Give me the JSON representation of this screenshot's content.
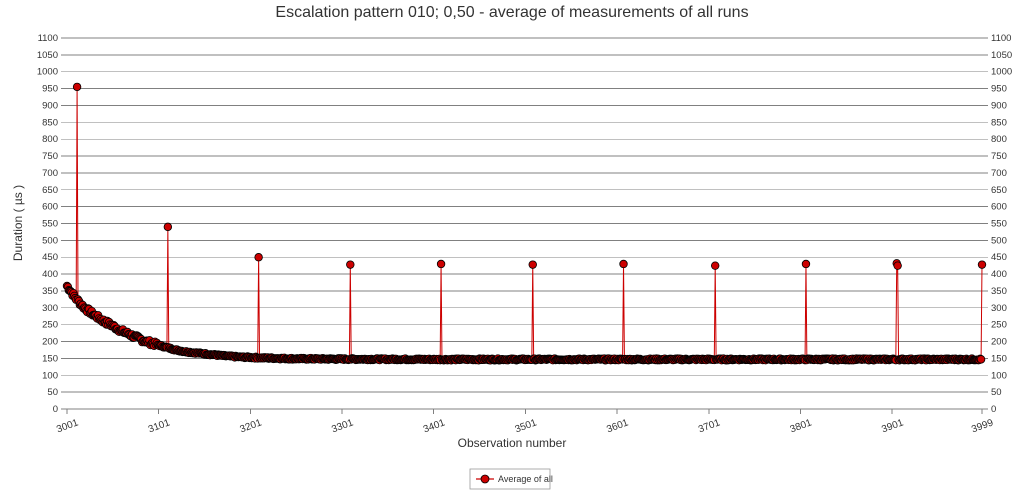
{
  "chart_data": {
    "type": "line",
    "title": "Escalation pattern 010; 0,50 - average of measurements of all runs",
    "xlabel": "Observation number",
    "ylabel": "Duration ( µs )",
    "xlim": [
      3001,
      3999
    ],
    "ylim": [
      0,
      1100
    ],
    "y_ticks": [
      0,
      50,
      100,
      150,
      200,
      250,
      300,
      350,
      400,
      450,
      500,
      550,
      600,
      650,
      700,
      750,
      800,
      850,
      900,
      950,
      1000,
      1050,
      1100
    ],
    "x_ticks": [
      3001,
      3101,
      3201,
      3301,
      3401,
      3501,
      3601,
      3701,
      3801,
      3901,
      3999
    ],
    "grid": true,
    "legend_position": "bottom-center",
    "series": [
      {
        "name": "Average of all",
        "color": "#cc0000",
        "marker": "circle",
        "base_curve": [
          [
            3001,
            365
          ],
          [
            3005,
            350
          ],
          [
            3010,
            330
          ],
          [
            3015,
            315
          ],
          [
            3020,
            300
          ],
          [
            3030,
            280
          ],
          [
            3040,
            262
          ],
          [
            3050,
            248
          ],
          [
            3060,
            232
          ],
          [
            3070,
            220
          ],
          [
            3080,
            208
          ],
          [
            3090,
            198
          ],
          [
            3100,
            190
          ],
          [
            3110,
            182
          ],
          [
            3120,
            175
          ],
          [
            3130,
            170
          ],
          [
            3140,
            167
          ],
          [
            3150,
            164
          ],
          [
            3160,
            161
          ],
          [
            3170,
            158
          ],
          [
            3180,
            156
          ],
          [
            3190,
            154
          ],
          [
            3200,
            153
          ],
          [
            3220,
            151
          ],
          [
            3250,
            149
          ],
          [
            3300,
            148
          ],
          [
            3400,
            147
          ],
          [
            3500,
            147
          ],
          [
            3600,
            147
          ],
          [
            3700,
            147
          ],
          [
            3800,
            147
          ],
          [
            3900,
            147
          ],
          [
            3999,
            147
          ]
        ],
        "spikes": [
          [
            3012,
            955
          ],
          [
            3111,
            540
          ],
          [
            3210,
            450
          ],
          [
            3310,
            428
          ],
          [
            3409,
            430
          ],
          [
            3509,
            428
          ],
          [
            3608,
            430
          ],
          [
            3708,
            425
          ],
          [
            3807,
            430
          ],
          [
            3907,
            425
          ],
          [
            3906,
            432
          ],
          [
            3999,
            428
          ]
        ]
      }
    ]
  }
}
